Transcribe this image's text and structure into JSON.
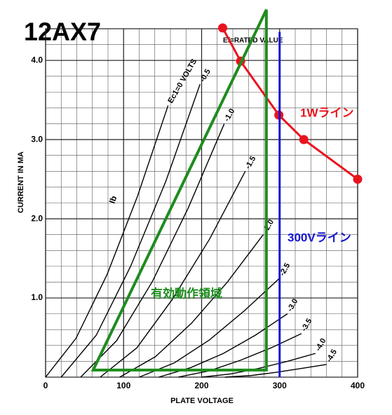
{
  "chart_data": {
    "type": "line",
    "title": "12AX7",
    "x_label": "PLATE VOLTAGE",
    "y_label": "CURRENT IN MA",
    "xlim": [
      0,
      400
    ],
    "ylim": [
      0,
      4.4
    ],
    "xticks": [
      0,
      100,
      200,
      300,
      400
    ],
    "yticks": [
      {
        "value": 1,
        "label": "1.0"
      },
      {
        "value": 2,
        "label": "2.0"
      },
      {
        "value": 3,
        "label": "3.0"
      },
      {
        "value": 4,
        "label": "4.0"
      }
    ],
    "grid": true,
    "annotations": [
      "Ib",
      "Ef=RATED VALUE"
    ],
    "series": [
      {
        "name": "Ec1=0 VOLTS",
        "color": "#000000",
        "x": [
          0,
          39,
          79,
          118,
          157
        ],
        "values": [
          0,
          0.49,
          1.3,
          2.29,
          3.43
        ]
      },
      {
        "name": "-0.5",
        "color": "#000000",
        "x": [
          20,
          65,
          109,
          154,
          198
        ],
        "values": [
          0,
          0.53,
          1.4,
          2.47,
          3.7
        ]
      },
      {
        "name": "-1.0",
        "color": "#000000",
        "x": [
          45,
          91,
          137,
          183,
          229
        ],
        "values": [
          0,
          0.46,
          1.21,
          2.14,
          3.2
        ]
      },
      {
        "name": "-1.5",
        "color": "#000000",
        "x": [
          70,
          117,
          163,
          210,
          256
        ],
        "values": [
          0,
          0.37,
          0.99,
          1.74,
          2.6
        ]
      },
      {
        "name": "-2.0",
        "color": "#000000",
        "x": [
          95,
          141,
          187,
          233,
          279
        ],
        "values": [
          0,
          0.26,
          0.68,
          1.2,
          1.8
        ]
      },
      {
        "name": "-2.5",
        "color": "#000000",
        "x": [
          120,
          165,
          210,
          255,
          300
        ],
        "values": [
          0,
          0.18,
          0.47,
          0.84,
          1.25
        ]
      },
      {
        "name": "-3.0",
        "color": "#000000",
        "x": [
          145,
          186,
          228,
          269,
          310
        ],
        "values": [
          0,
          0.12,
          0.3,
          0.53,
          0.8
        ]
      },
      {
        "name": "-3.5",
        "color": "#000000",
        "x": [
          170,
          210,
          249,
          289,
          328
        ],
        "values": [
          0,
          0.08,
          0.21,
          0.37,
          0.55
        ]
      },
      {
        "name": "-4.0",
        "color": "#000000",
        "x": [
          200,
          237,
          273,
          310,
          346
        ],
        "values": [
          0,
          0.04,
          0.11,
          0.2,
          0.3
        ]
      },
      {
        "name": "-4.5",
        "color": "#000000",
        "x": [
          230,
          263,
          295,
          328,
          360
        ],
        "values": [
          0,
          0.02,
          0.06,
          0.11,
          0.16
        ]
      }
    ],
    "overlays": [
      {
        "name": "1Wライン",
        "type": "line",
        "color": "#e8141e",
        "markers": true,
        "x": [
          227,
          250,
          299,
          331,
          400
        ],
        "values": [
          4.41,
          3.99,
          3.31,
          3.0,
          2.5
        ]
      },
      {
        "name": "300Vライン",
        "type": "line",
        "color": "#1414d2",
        "markers": false,
        "x": [
          300,
          300
        ],
        "values": [
          0,
          4.36
        ]
      },
      {
        "name": "有効動作領域",
        "type": "polygon",
        "color": "#1e8c1e",
        "markers": false,
        "x": [
          61,
          283,
          283
        ],
        "values": [
          0.09,
          0.09,
          4.64
        ]
      }
    ]
  }
}
